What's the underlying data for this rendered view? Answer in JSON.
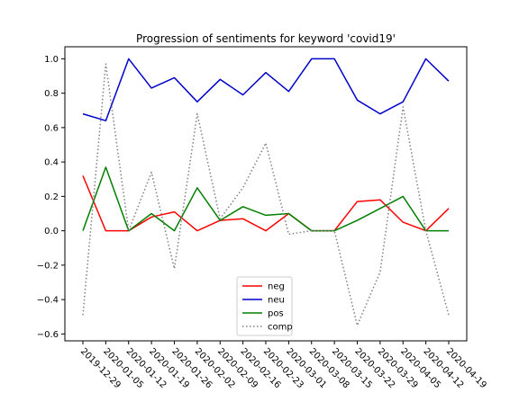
{
  "chart_data": {
    "type": "line",
    "title": "Progression of sentiments for keyword 'covid19'",
    "xlabel": "",
    "ylabel": "",
    "categories": [
      "2019-12-29",
      "2020-01-05",
      "2020-01-12",
      "2020-01-19",
      "2020-01-26",
      "2020-02-02",
      "2020-02-09",
      "2020-02-16",
      "2020-02-23",
      "2020-03-01",
      "2020-03-08",
      "2020-03-15",
      "2020-03-22",
      "2020-03-29",
      "2020-04-05",
      "2020-04-12",
      "2020-04-19"
    ],
    "yticks": [
      "−0.6",
      "−0.4",
      "−0.2",
      "0.0",
      "0.2",
      "0.4",
      "0.6",
      "0.8",
      "1.0"
    ],
    "ylim": [
      -0.64,
      1.07
    ],
    "grid": false,
    "legend_position": "lower center",
    "series": [
      {
        "name": "neg",
        "color": "#ff0000",
        "style": "solid",
        "values": [
          0.32,
          0.0,
          0.0,
          0.08,
          0.11,
          0.0,
          0.06,
          0.07,
          0.0,
          0.1,
          0.0,
          0.0,
          0.17,
          0.18,
          0.05,
          0.0,
          0.13
        ]
      },
      {
        "name": "neu",
        "color": "#0000cc",
        "style": "solid",
        "values": [
          0.68,
          0.64,
          1.0,
          0.83,
          0.89,
          0.75,
          0.88,
          0.79,
          0.92,
          0.81,
          1.0,
          1.0,
          0.76,
          0.68,
          0.75,
          1.0,
          0.87
        ]
      },
      {
        "name": "pos",
        "color": "#008000",
        "style": "solid",
        "values": [
          0.0,
          0.37,
          0.0,
          0.1,
          0.0,
          0.25,
          0.06,
          0.14,
          0.09,
          0.1,
          0.0,
          0.0,
          0.06,
          0.13,
          0.2,
          0.0,
          0.0
        ]
      },
      {
        "name": "comp",
        "color": "#808080",
        "style": "dotted",
        "values": [
          -0.49,
          0.97,
          0.0,
          0.34,
          -0.22,
          0.68,
          0.07,
          0.25,
          0.51,
          -0.02,
          0.0,
          0.0,
          -0.55,
          -0.24,
          0.72,
          0.0,
          -0.49
        ]
      }
    ]
  }
}
